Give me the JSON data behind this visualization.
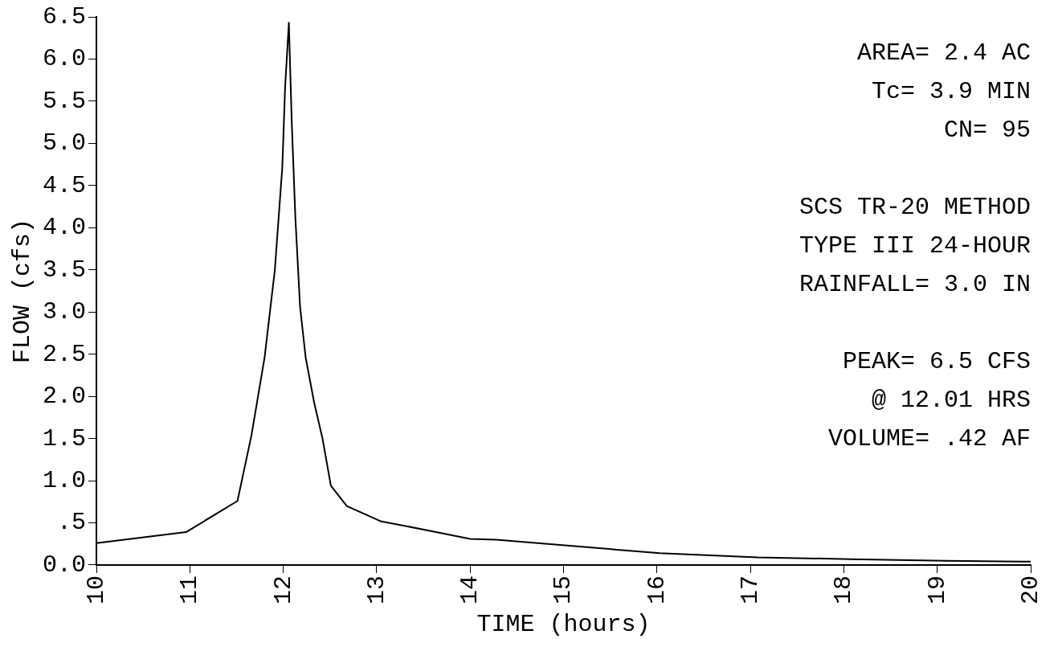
{
  "chart_data": {
    "type": "line",
    "xlabel": "TIME (hours)",
    "ylabel": "FLOW (cfs)",
    "x": [
      10.0,
      10.96,
      11.51,
      11.66,
      11.8,
      11.91,
      11.99,
      12.02,
      12.06,
      12.09,
      12.13,
      12.18,
      12.24,
      12.33,
      12.42,
      12.51,
      12.68,
      13.04,
      13.55,
      14.0,
      14.28,
      15.04,
      16.03,
      17.08,
      18.07,
      19.09,
      20.0
    ],
    "series": [
      {
        "color": "#000000",
        "values": [
          0.26,
          0.39,
          0.76,
          1.54,
          2.46,
          3.5,
          4.72,
          5.67,
          6.43,
          5.28,
          4.11,
          3.06,
          2.46,
          1.93,
          1.5,
          0.94,
          0.7,
          0.52,
          0.41,
          0.31,
          0.3,
          0.23,
          0.14,
          0.09,
          0.07,
          0.05,
          0.04
        ]
      }
    ],
    "xlim": [
      10,
      20
    ],
    "xticks": [
      10,
      11,
      12,
      13,
      14,
      15,
      16,
      17,
      18,
      19,
      20
    ],
    "ylim": [
      0,
      6.5
    ],
    "yticks": [
      {
        "value": 0,
        "label": "0.0"
      },
      {
        "value": 0.5,
        "label": ".5"
      },
      {
        "value": 1,
        "label": "1.0"
      },
      {
        "value": 1.5,
        "label": "1.5"
      },
      {
        "value": 2,
        "label": "2.0"
      },
      {
        "value": 2.5,
        "label": "2.5"
      },
      {
        "value": 3,
        "label": "3.0"
      },
      {
        "value": 3.5,
        "label": "3.5"
      },
      {
        "value": 4,
        "label": "4.0"
      },
      {
        "value": 4.5,
        "label": "4.5"
      },
      {
        "value": 5,
        "label": "5.0"
      },
      {
        "value": 5.5,
        "label": "5.5"
      },
      {
        "value": 6,
        "label": "6.0"
      },
      {
        "value": 6.5,
        "label": "6.5"
      }
    ],
    "grid": false,
    "legend": false,
    "marker": "none",
    "line_style": "solid",
    "annotations": [
      "AREA= 2.4 AC\nTc= 3.9 MIN\nCN= 95",
      "SCS TR-20 METHOD\nTYPE III 24-HOUR\nRAINFALL= 3.0 IN",
      "PEAK= 6.5 CFS\n@ 12.01 HRS\nVOLUME= .42 AF"
    ]
  }
}
